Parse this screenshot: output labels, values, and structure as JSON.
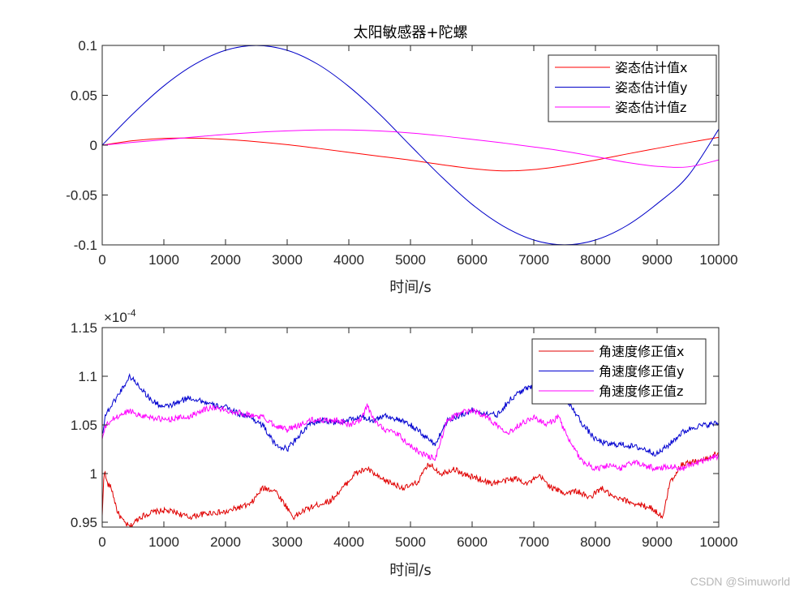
{
  "watermark": "CSDN @Simuworld",
  "chart_data": [
    {
      "type": "line",
      "title": "太阳敏感器+陀螺",
      "xlabel": "时间/s",
      "ylabel": "",
      "xlim": [
        0,
        10000
      ],
      "ylim": [
        -0.1,
        0.1
      ],
      "xticks": [
        0,
        1000,
        2000,
        3000,
        4000,
        5000,
        6000,
        7000,
        8000,
        9000,
        10000
      ],
      "yticks": [
        0.1,
        0.05,
        0,
        -0.05,
        -0.1
      ],
      "ytick_labels": [
        "0.1",
        "0.05",
        "0",
        "-0.05",
        "-0.1"
      ],
      "legend_position": "top-right",
      "series": [
        {
          "name": "姿态估计值x",
          "color": "#ff0000",
          "x": [
            0,
            500,
            1000,
            1500,
            2000,
            2500,
            3000,
            3500,
            4000,
            4500,
            5000,
            5500,
            6000,
            6500,
            7000,
            7500,
            8000,
            8500,
            9000,
            9500,
            10000
          ],
          "y": [
            0,
            0.0045,
            0.0068,
            0.007,
            0.0058,
            0.0035,
            0.0005,
            -0.0032,
            -0.0072,
            -0.0112,
            -0.015,
            -0.0195,
            -0.0235,
            -0.0258,
            -0.0245,
            -0.0205,
            -0.015,
            -0.009,
            -0.0032,
            0.0025,
            0.0078
          ]
        },
        {
          "name": "姿态估计值y",
          "color": "#0000c8",
          "x": [
            0,
            500,
            1000,
            1500,
            2000,
            2500,
            3000,
            3500,
            4000,
            4500,
            5000,
            5500,
            6000,
            6500,
            7000,
            7500,
            8000,
            8500,
            9000,
            9500,
            10000
          ],
          "y": [
            0,
            0.0315,
            0.0594,
            0.081,
            0.0951,
            0.0999,
            0.0951,
            0.081,
            0.0588,
            0.031,
            -0.0005,
            -0.0315,
            -0.0594,
            -0.081,
            -0.0951,
            -0.0999,
            -0.0951,
            -0.081,
            -0.0588,
            -0.031,
            0.016
          ]
        },
        {
          "name": "姿态估计值z",
          "color": "#ff00ff",
          "x": [
            0,
            500,
            1000,
            1500,
            2000,
            2500,
            3000,
            3500,
            4000,
            4500,
            5000,
            5500,
            6000,
            6500,
            7000,
            7500,
            8000,
            8500,
            9000,
            9500,
            10000
          ],
          "y": [
            0,
            0.0028,
            0.0055,
            0.0082,
            0.0108,
            0.0128,
            0.0143,
            0.0152,
            0.0152,
            0.0142,
            0.0122,
            0.0093,
            0.0058,
            0.0022,
            -0.0018,
            -0.0062,
            -0.0115,
            -0.0172,
            -0.0212,
            -0.0218,
            -0.0148
          ]
        }
      ]
    },
    {
      "type": "line",
      "title": "",
      "xlabel": "时间/s",
      "ylabel": "",
      "exponent_label": "×10",
      "exponent_power": "-4",
      "xlim": [
        0,
        10000
      ],
      "ylim": [
        0.945,
        1.15
      ],
      "xticks": [
        0,
        1000,
        2000,
        3000,
        4000,
        5000,
        6000,
        7000,
        8000,
        9000,
        10000
      ],
      "yticks": [
        1.15,
        1.1,
        1.05,
        1,
        0.95
      ],
      "ytick_labels": [
        "1.15",
        "1.1",
        "1.05",
        "1",
        "0.95"
      ],
      "legend_position": "top-right",
      "series": [
        {
          "name": "角速度修正值x",
          "color": "#e00000",
          "x": [
            0,
            30,
            80,
            150,
            250,
            350,
            450,
            600,
            800,
            1000,
            1200,
            1400,
            1600,
            1800,
            2000,
            2200,
            2400,
            2600,
            2800,
            3000,
            3100,
            3300,
            3500,
            3700,
            3900,
            4100,
            4300,
            4500,
            4700,
            4900,
            5100,
            5300,
            5500,
            5700,
            5900,
            6100,
            6300,
            6500,
            6700,
            6900,
            7100,
            7300,
            7500,
            7700,
            7900,
            8100,
            8300,
            8500,
            8700,
            8900,
            9100,
            9200,
            9400,
            9600,
            9800,
            10000
          ],
          "y": [
            0.955,
            1.005,
            0.99,
            0.985,
            0.96,
            0.95,
            0.945,
            0.955,
            0.96,
            0.962,
            0.96,
            0.955,
            0.958,
            0.96,
            0.96,
            0.965,
            0.968,
            0.985,
            0.983,
            0.965,
            0.955,
            0.963,
            0.968,
            0.972,
            0.985,
            1.0,
            1.005,
            0.995,
            0.99,
            0.985,
            0.99,
            1.01,
            1.0,
            1.005,
            0.998,
            0.995,
            0.99,
            0.992,
            0.995,
            0.99,
            0.997,
            0.985,
            0.98,
            0.982,
            0.975,
            0.985,
            0.975,
            0.972,
            0.968,
            0.965,
            0.955,
            0.99,
            1.01,
            1.012,
            1.015,
            1.022
          ]
        },
        {
          "name": "角速度修正值y",
          "color": "#0000d0",
          "x": [
            0,
            50,
            150,
            300,
            450,
            600,
            800,
            1000,
            1200,
            1400,
            1600,
            1800,
            2000,
            2200,
            2400,
            2600,
            2800,
            3000,
            3200,
            3400,
            3600,
            3800,
            4000,
            4200,
            4400,
            4600,
            4800,
            5000,
            5200,
            5400,
            5600,
            5800,
            6000,
            6200,
            6400,
            6600,
            6800,
            7000,
            7200,
            7400,
            7600,
            7800,
            8000,
            8200,
            8400,
            8600,
            8800,
            9000,
            9200,
            9400,
            9600,
            9800,
            10000
          ],
          "y": [
            1.04,
            1.06,
            1.07,
            1.085,
            1.1,
            1.09,
            1.075,
            1.068,
            1.072,
            1.078,
            1.075,
            1.07,
            1.068,
            1.062,
            1.058,
            1.05,
            1.03,
            1.025,
            1.04,
            1.052,
            1.055,
            1.052,
            1.055,
            1.058,
            1.055,
            1.06,
            1.055,
            1.05,
            1.04,
            1.03,
            1.055,
            1.06,
            1.065,
            1.062,
            1.06,
            1.075,
            1.085,
            1.09,
            1.1,
            1.082,
            1.07,
            1.05,
            1.035,
            1.03,
            1.03,
            1.028,
            1.025,
            1.02,
            1.03,
            1.042,
            1.048,
            1.05,
            1.052
          ]
        },
        {
          "name": "角速度修正值z",
          "color": "#ff00ff",
          "x": [
            0,
            50,
            150,
            300,
            450,
            600,
            800,
            1000,
            1200,
            1400,
            1600,
            1800,
            2000,
            2200,
            2400,
            2600,
            2800,
            3000,
            3200,
            3400,
            3600,
            3800,
            4000,
            4200,
            4300,
            4400,
            4600,
            4800,
            5000,
            5200,
            5400,
            5600,
            5800,
            6000,
            6200,
            6400,
            6600,
            6800,
            7000,
            7200,
            7400,
            7600,
            7800,
            8000,
            8200,
            8400,
            8600,
            8800,
            9000,
            9200,
            9400,
            9600,
            9800,
            10000
          ],
          "y": [
            1.035,
            1.048,
            1.055,
            1.06,
            1.065,
            1.06,
            1.058,
            1.055,
            1.057,
            1.058,
            1.065,
            1.068,
            1.065,
            1.063,
            1.06,
            1.058,
            1.05,
            1.045,
            1.05,
            1.055,
            1.055,
            1.055,
            1.05,
            1.055,
            1.07,
            1.055,
            1.045,
            1.04,
            1.028,
            1.02,
            1.015,
            1.055,
            1.062,
            1.065,
            1.06,
            1.05,
            1.042,
            1.052,
            1.058,
            1.05,
            1.058,
            1.03,
            1.012,
            1.005,
            1.008,
            1.005,
            1.012,
            1.008,
            1.005,
            1.008,
            1.005,
            1.01,
            1.015,
            1.018
          ]
        }
      ]
    }
  ]
}
